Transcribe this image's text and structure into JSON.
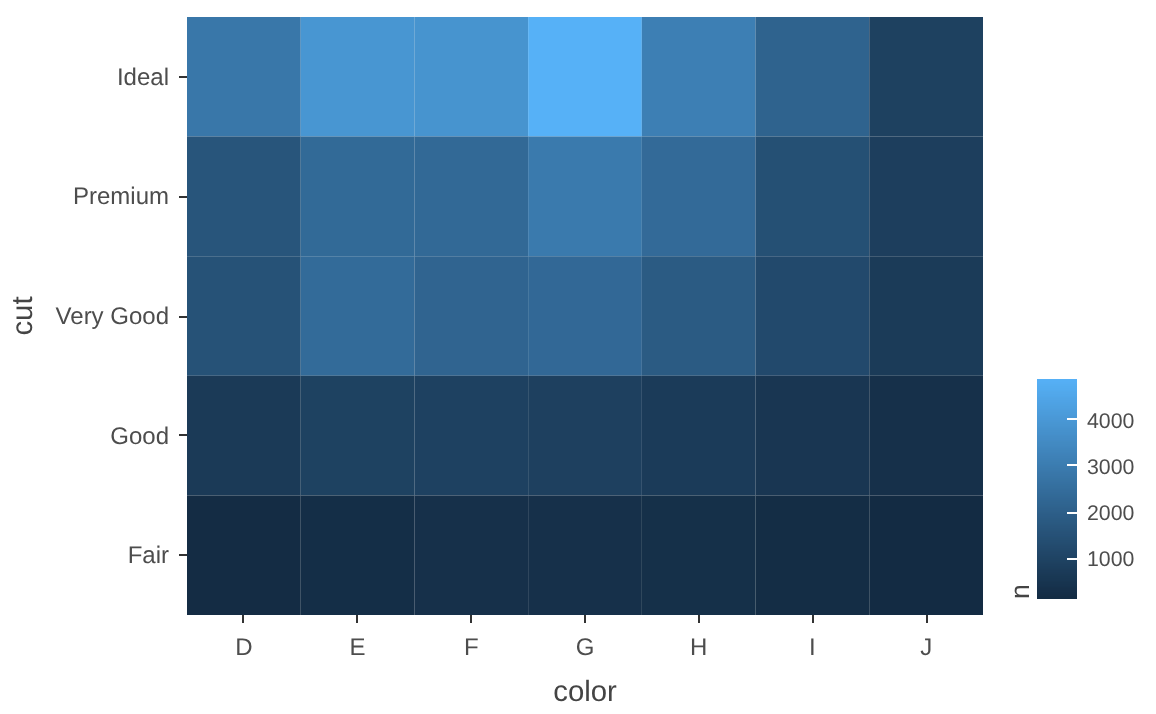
{
  "chart_data": {
    "type": "heatmap",
    "xlabel": "color",
    "ylabel": "cut",
    "clabel": "n",
    "categories": [
      "D",
      "E",
      "F",
      "G",
      "H",
      "I",
      "J"
    ],
    "y_categories": [
      "Ideal",
      "Premium",
      "Very Good",
      "Good",
      "Fair"
    ],
    "cells": [
      [
        2834,
        3903,
        3826,
        4884,
        3115,
        2093,
        896
      ],
      [
        1603,
        2337,
        2331,
        2924,
        2360,
        1428,
        808
      ],
      [
        1513,
        2400,
        2164,
        2299,
        1824,
        1204,
        678
      ],
      [
        662,
        933,
        909,
        871,
        702,
        522,
        307
      ],
      [
        163,
        224,
        312,
        314,
        303,
        175,
        119
      ]
    ],
    "colors": [
      "#132b43",
      "#56b1f7"
    ],
    "clim": [
      119,
      4884
    ],
    "cticks": [
      1000,
      2000,
      3000,
      4000
    ],
    "grid": false
  }
}
